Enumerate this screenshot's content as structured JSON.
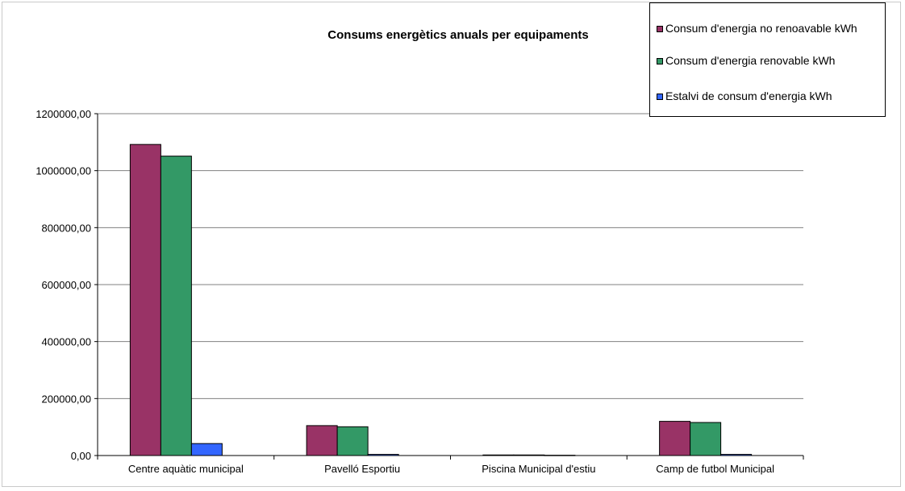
{
  "chart_data": {
    "type": "bar",
    "title": "Consums energètics anuals per equipaments",
    "xlabel": "",
    "ylabel": "",
    "categories": [
      "Centre aquàtic municipal",
      "Pavelló Esportiu",
      "Piscina Municipal d'estiu",
      "Camp de futbol Municipal"
    ],
    "series": [
      {
        "name": "Consum d'energia no renoavable kWh",
        "color": "#993366",
        "values": [
          1092000,
          105000,
          2000,
          120000
        ]
      },
      {
        "name": "Consum d'energia renovable kWh",
        "color": "#339966",
        "values": [
          1051000,
          101000,
          2000,
          116000
        ]
      },
      {
        "name": "Estalvi de consum d'energia kWh",
        "color": "#3366ff",
        "values": [
          42000,
          4000,
          1000,
          4000
        ]
      }
    ],
    "ylim": [
      0,
      1200000
    ],
    "yticks": [
      "0,00",
      "200000,00",
      "400000,00",
      "600000,00",
      "800000,00",
      "1000000,00",
      "1200000,00"
    ],
    "grid": true,
    "legend": "top-right"
  }
}
